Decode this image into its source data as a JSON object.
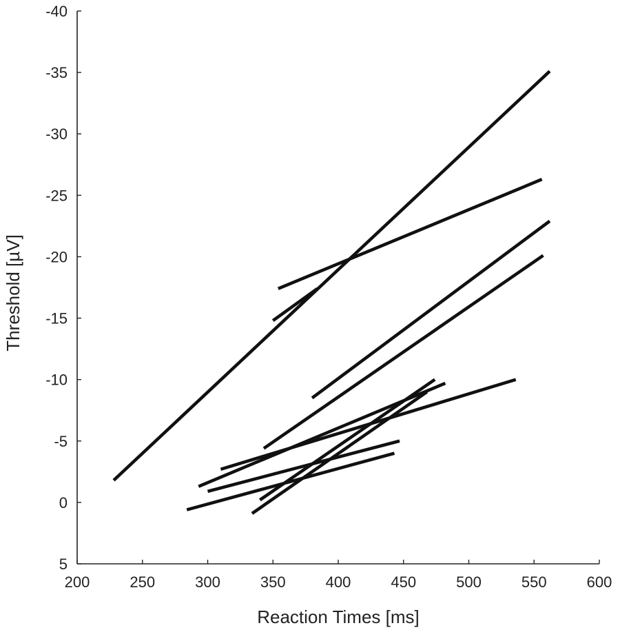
{
  "chart_data": {
    "type": "line",
    "title": "",
    "xlabel": "Reaction Times [ms]",
    "ylabel": "Threshold [µV]",
    "xlim": [
      200,
      600
    ],
    "ylim": [
      5,
      -40
    ],
    "y_axis_inverted": true,
    "xticks": [
      "200",
      "250",
      "300",
      "350",
      "400",
      "450",
      "500",
      "550",
      "600"
    ],
    "yticks": [
      "-40",
      "-35",
      "-30",
      "-25",
      "-20",
      "-15",
      "-10",
      "-5",
      "0",
      "5"
    ],
    "grid": false,
    "legend": "none",
    "line_color": "#111111",
    "series": [
      {
        "x": [
          228,
          562
        ],
        "y": [
          -1.8,
          -35.1
        ]
      },
      {
        "x": [
          354,
          556
        ],
        "y": [
          -17.4,
          -26.3
        ]
      },
      {
        "x": [
          350,
          384
        ],
        "y": [
          -14.8,
          -17.4
        ]
      },
      {
        "x": [
          380,
          562
        ],
        "y": [
          -8.5,
          -22.9
        ]
      },
      {
        "x": [
          343,
          557
        ],
        "y": [
          -4.4,
          -20.1
        ]
      },
      {
        "x": [
          310,
          536
        ],
        "y": [
          -2.7,
          -10.0
        ]
      },
      {
        "x": [
          293,
          482
        ],
        "y": [
          -1.3,
          -9.7
        ]
      },
      {
        "x": [
          340,
          474
        ],
        "y": [
          -0.2,
          -10.0
        ]
      },
      {
        "x": [
          334,
          468
        ],
        "y": [
          0.9,
          -9.0
        ]
      },
      {
        "x": [
          300,
          447
        ],
        "y": [
          -0.9,
          -5.0
        ]
      },
      {
        "x": [
          284,
          443
        ],
        "y": [
          0.6,
          -4.0
        ]
      }
    ]
  }
}
